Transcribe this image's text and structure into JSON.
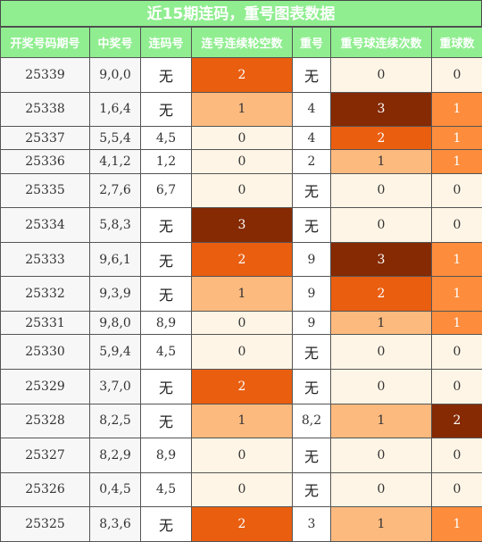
{
  "title": "近15期连码，重号图表数据",
  "headers": [
    "开奖号码期号",
    "中奖号",
    "连码号",
    "连号连续轮空数",
    "重号",
    "重号球连续次数",
    "重球数"
  ],
  "rows": [
    {
      "issue": "25339",
      "win": "9,0,0",
      "consec": "无",
      "gap": "2",
      "repeat": "无",
      "repeat_run": "0",
      "repeat_count": "0"
    },
    {
      "issue": "25338",
      "win": "1,6,4",
      "consec": "无",
      "gap": "1",
      "repeat": "4",
      "repeat_run": "3",
      "repeat_count": "1"
    },
    {
      "issue": "25337",
      "win": "5,5,4",
      "consec": "4,5",
      "gap": "0",
      "repeat": "4",
      "repeat_run": "2",
      "repeat_count": "1"
    },
    {
      "issue": "25336",
      "win": "4,1,2",
      "consec": "1,2",
      "gap": "0",
      "repeat": "2",
      "repeat_run": "1",
      "repeat_count": "1"
    },
    {
      "issue": "25335",
      "win": "2,7,6",
      "consec": "6,7",
      "gap": "0",
      "repeat": "无",
      "repeat_run": "0",
      "repeat_count": "0"
    },
    {
      "issue": "25334",
      "win": "5,8,3",
      "consec": "无",
      "gap": "3",
      "repeat": "无",
      "repeat_run": "0",
      "repeat_count": "0"
    },
    {
      "issue": "25333",
      "win": "9,6,1",
      "consec": "无",
      "gap": "2",
      "repeat": "9",
      "repeat_run": "3",
      "repeat_count": "1"
    },
    {
      "issue": "25332",
      "win": "9,3,9",
      "consec": "无",
      "gap": "1",
      "repeat": "9",
      "repeat_run": "2",
      "repeat_count": "1"
    },
    {
      "issue": "25331",
      "win": "9,8,0",
      "consec": "8,9",
      "gap": "0",
      "repeat": "9",
      "repeat_run": "1",
      "repeat_count": "1"
    },
    {
      "issue": "25330",
      "win": "5,9,4",
      "consec": "4,5",
      "gap": "0",
      "repeat": "无",
      "repeat_run": "0",
      "repeat_count": "0"
    },
    {
      "issue": "25329",
      "win": "3,7,0",
      "consec": "无",
      "gap": "2",
      "repeat": "无",
      "repeat_run": "0",
      "repeat_count": "0"
    },
    {
      "issue": "25328",
      "win": "8,2,5",
      "consec": "无",
      "gap": "1",
      "repeat": "8,2",
      "repeat_run": "1",
      "repeat_count": "2"
    },
    {
      "issue": "25327",
      "win": "8,2,9",
      "consec": "8,9",
      "gap": "0",
      "repeat": "无",
      "repeat_run": "0",
      "repeat_count": "0"
    },
    {
      "issue": "25326",
      "win": "0,4,5",
      "consec": "4,5",
      "gap": "0",
      "repeat": "无",
      "repeat_run": "0",
      "repeat_count": "0"
    },
    {
      "issue": "25325",
      "win": "8,3,6",
      "consec": "无",
      "gap": "2",
      "repeat": "3",
      "repeat_run": "1",
      "repeat_count": "1"
    }
  ],
  "colors": {
    "header_bg": "#90EE90",
    "level_0": "#FFF5E6",
    "level_1": "#FDBA7F",
    "level_2": "#EA5E10",
    "level_3": "#852A03",
    "repeat_1": "#FD8C3C",
    "repeat_2": "#852A03"
  }
}
